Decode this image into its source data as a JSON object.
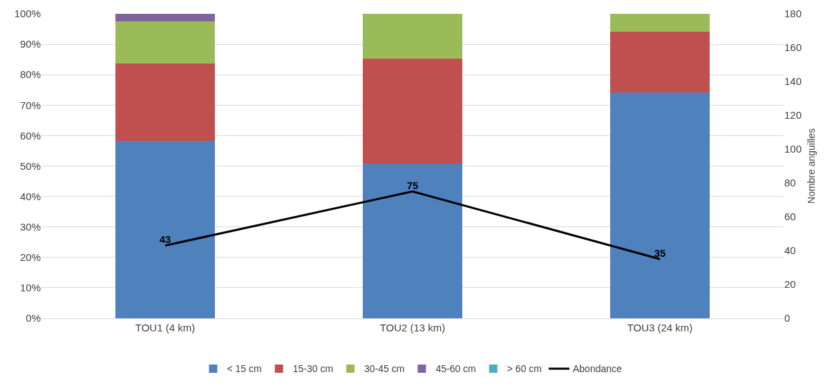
{
  "chart_data": {
    "type": "bar",
    "stacked": true,
    "categories": [
      "TOU1 (4 km)",
      "TOU2 (13 km)",
      "TOU3 (24 km)"
    ],
    "series": [
      {
        "name": "< 15 cm",
        "color": "#4f81bd",
        "values": [
          58.3,
          50.8,
          74.2
        ]
      },
      {
        "name": "15-30 cm",
        "color": "#c0504d",
        "values": [
          25.3,
          34.5,
          19.9
        ]
      },
      {
        "name": "30-45 cm",
        "color": "#9bbb59",
        "values": [
          14.0,
          14.7,
          5.9
        ]
      },
      {
        "name": "45-60 cm",
        "color": "#8064a2",
        "values": [
          2.4,
          0,
          0
        ]
      },
      {
        "name": "> 60 cm",
        "color": "#4bacc6",
        "values": [
          0,
          0,
          0
        ]
      },
      {
        "name": "Abondance",
        "type": "line",
        "axis": "y2",
        "color": "#000000",
        "values": [
          43,
          75,
          35
        ],
        "value_labels": [
          "43",
          "75",
          "35"
        ]
      }
    ],
    "ylim": [
      0,
      100
    ],
    "yticks": [
      {
        "value": 0,
        "label": "0%"
      },
      {
        "value": 10,
        "label": "10%"
      },
      {
        "value": 20,
        "label": "20%"
      },
      {
        "value": 30,
        "label": "30%"
      },
      {
        "value": 40,
        "label": "40%"
      },
      {
        "value": 50,
        "label": "50%"
      },
      {
        "value": 60,
        "label": "60%"
      },
      {
        "value": 70,
        "label": "70%"
      },
      {
        "value": 80,
        "label": "80%"
      },
      {
        "value": 90,
        "label": "90%"
      },
      {
        "value": 100,
        "label": "100%"
      }
    ],
    "y2label": "Nombre anguilles",
    "y2lim": [
      0,
      180
    ],
    "y2ticks": [
      0,
      20,
      40,
      60,
      80,
      100,
      120,
      140,
      160,
      180
    ],
    "grid": "y",
    "legend": "bottom",
    "marker": "none",
    "line_style": "solid"
  }
}
